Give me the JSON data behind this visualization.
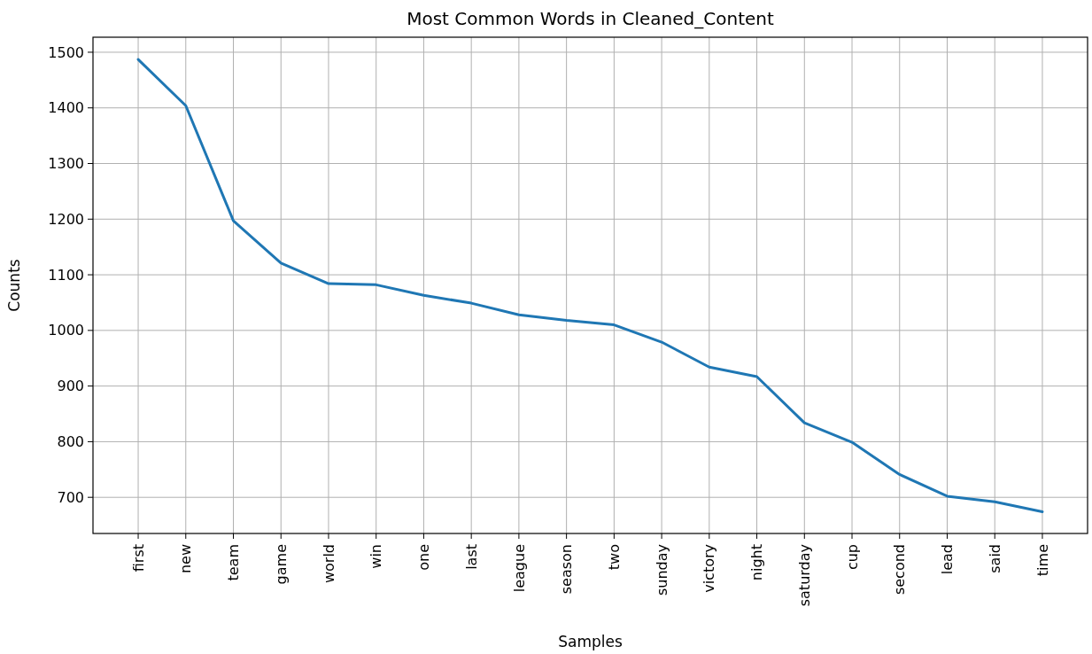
{
  "chart_data": {
    "type": "line",
    "title": "Most Common Words in Cleaned_Content",
    "xlabel": "Samples",
    "ylabel": "Counts",
    "categories": [
      "first",
      "new",
      "team",
      "game",
      "world",
      "win",
      "one",
      "last",
      "league",
      "season",
      "two",
      "sunday",
      "victory",
      "night",
      "saturday",
      "cup",
      "second",
      "lead",
      "said",
      "time"
    ],
    "series": [
      {
        "color": "#1f77b4",
        "values": [
          1487,
          1404,
          1197,
          1121,
          1084,
          1082,
          1063,
          1049,
          1028,
          1018,
          1010,
          979,
          934,
          917,
          834,
          799,
          741,
          702,
          692,
          674
        ]
      }
    ],
    "ylim": [
      635,
      1527
    ],
    "yticks": [
      700,
      800,
      900,
      1000,
      1100,
      1200,
      1300,
      1400,
      1500
    ],
    "grid": true
  }
}
